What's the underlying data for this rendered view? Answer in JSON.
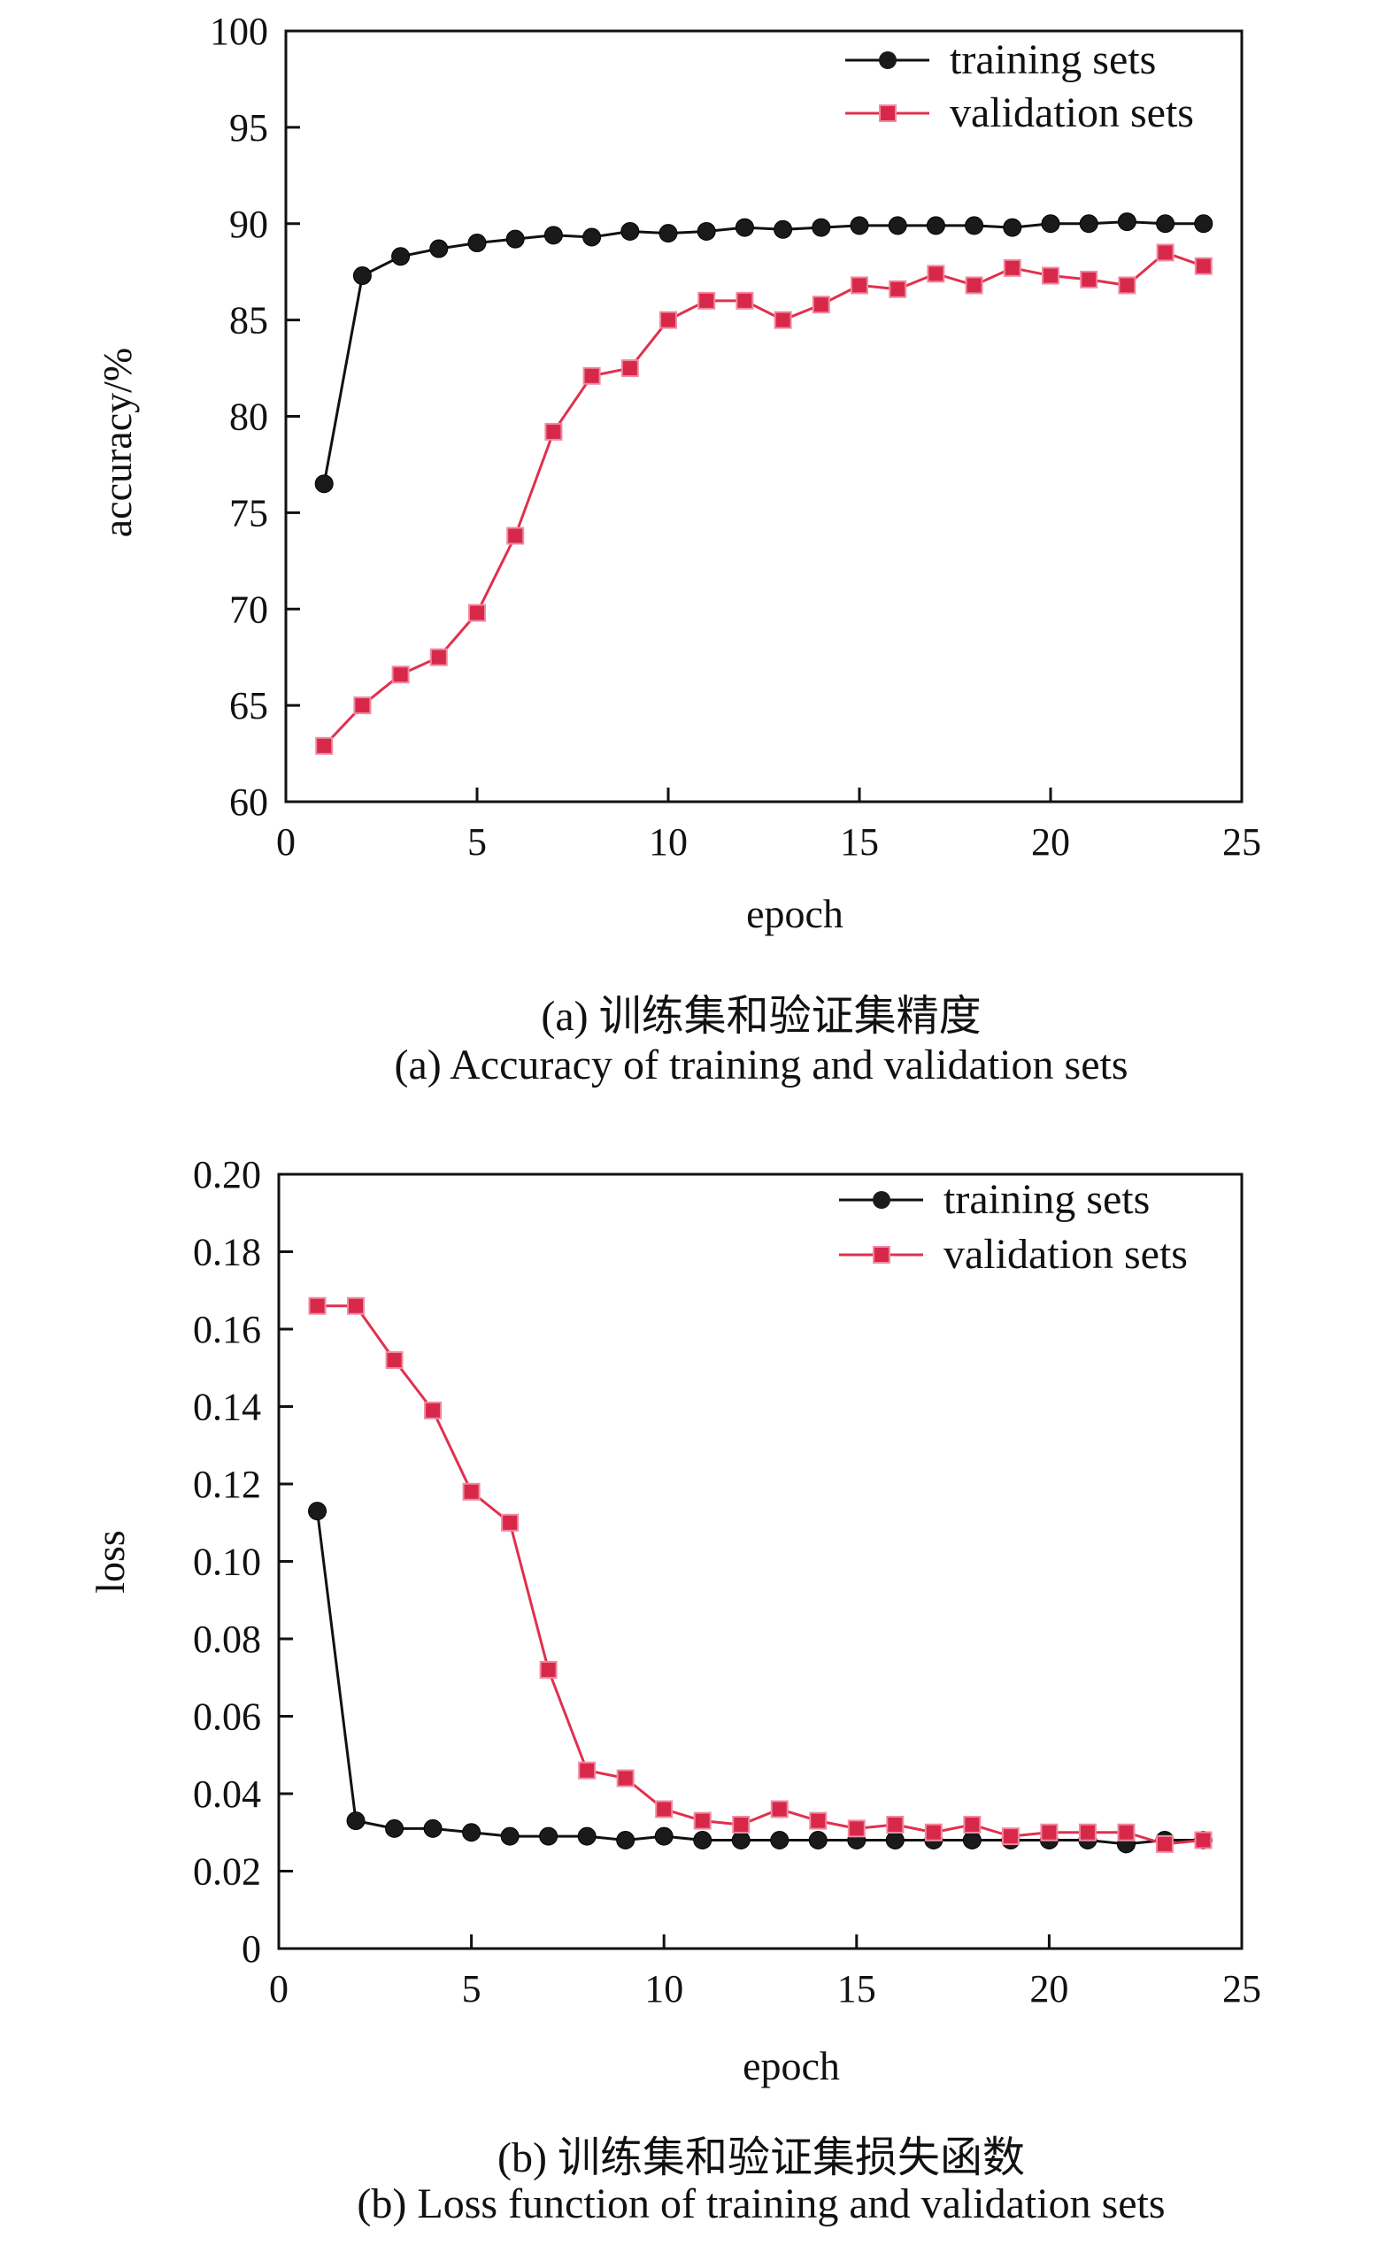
{
  "chart_data": [
    {
      "type": "line",
      "caption_cn": "(a) 训练集和验证集精度",
      "caption_en": "(a) Accuracy of training and validation sets",
      "xlabel": "epoch",
      "ylabel": "accuracy/%",
      "xlim": [
        0,
        25
      ],
      "ylim": [
        60,
        100
      ],
      "xticks": [
        "0",
        "5",
        "10",
        "15",
        "20",
        "25"
      ],
      "yticks": [
        "60",
        "65",
        "70",
        "75",
        "80",
        "85",
        "90",
        "95",
        "100"
      ],
      "legend_position": "top-right",
      "grid": false,
      "x": [
        1,
        2,
        3,
        4,
        5,
        6,
        7,
        8,
        9,
        10,
        11,
        12,
        13,
        14,
        15,
        16,
        17,
        18,
        19,
        20,
        21,
        22,
        23,
        24
      ],
      "series": [
        {
          "name": "training sets",
          "color": "#111111",
          "marker": "circle",
          "values": [
            76.5,
            87.3,
            88.3,
            88.7,
            89.0,
            89.2,
            89.4,
            89.3,
            89.6,
            89.5,
            89.6,
            89.8,
            89.7,
            89.8,
            89.9,
            89.9,
            89.9,
            89.9,
            89.8,
            90.0,
            90.0,
            90.1,
            90.0,
            90.0
          ]
        },
        {
          "name": "validation sets",
          "color": "#e0304e",
          "marker": "square",
          "values": [
            62.9,
            65.0,
            66.6,
            67.5,
            69.8,
            73.8,
            79.2,
            82.1,
            82.5,
            85.0,
            86.0,
            86.0,
            85.0,
            85.8,
            86.8,
            86.6,
            87.4,
            86.8,
            87.7,
            87.3,
            87.1,
            86.8,
            88.5,
            87.8
          ]
        }
      ]
    },
    {
      "type": "line",
      "caption_cn": "(b) 训练集和验证集损失函数",
      "caption_en": "(b) Loss function of training and validation sets",
      "xlabel": "epoch",
      "ylabel": "loss",
      "xlim": [
        0,
        25
      ],
      "ylim": [
        0,
        0.2
      ],
      "xticks": [
        "0",
        "5",
        "10",
        "15",
        "20",
        "25"
      ],
      "yticks": [
        "0",
        "0.02",
        "0.04",
        "0.06",
        "0.08",
        "0.10",
        "0.12",
        "0.14",
        "0.16",
        "0.18",
        "0.20"
      ],
      "legend_position": "top-right",
      "grid": false,
      "x": [
        1,
        2,
        3,
        4,
        5,
        6,
        7,
        8,
        9,
        10,
        11,
        12,
        13,
        14,
        15,
        16,
        17,
        18,
        19,
        20,
        21,
        22,
        23,
        24
      ],
      "series": [
        {
          "name": "training sets",
          "color": "#111111",
          "marker": "circle",
          "values": [
            0.113,
            0.033,
            0.031,
            0.031,
            0.03,
            0.029,
            0.029,
            0.029,
            0.028,
            0.029,
            0.028,
            0.028,
            0.028,
            0.028,
            0.028,
            0.028,
            0.028,
            0.028,
            0.028,
            0.028,
            0.028,
            0.027,
            0.028,
            0.028
          ]
        },
        {
          "name": "validation sets",
          "color": "#e0304e",
          "marker": "square",
          "values": [
            0.166,
            0.166,
            0.152,
            0.139,
            0.118,
            0.11,
            0.072,
            0.046,
            0.044,
            0.036,
            0.033,
            0.032,
            0.036,
            0.033,
            0.031,
            0.032,
            0.03,
            0.032,
            0.029,
            0.03,
            0.03,
            0.03,
            0.027,
            0.028
          ]
        }
      ]
    }
  ]
}
